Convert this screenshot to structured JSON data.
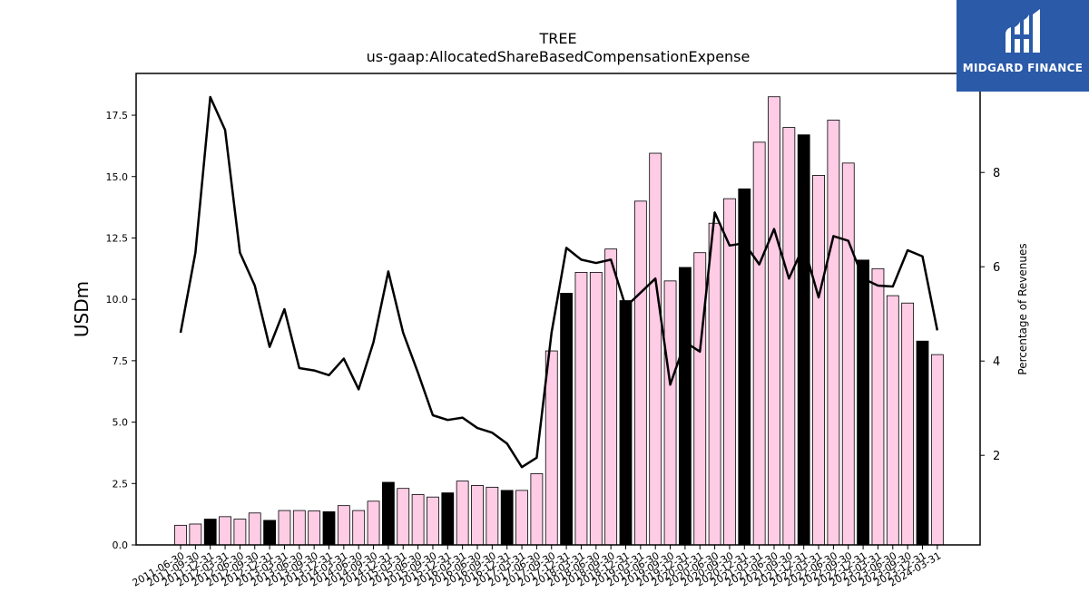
{
  "chart_data": {
    "type": "bar",
    "title": "TREE",
    "subtitle": "us-gaap:AllocatedShareBasedCompensationExpense",
    "ylabel": "USDm",
    "y2label": "Percentage of Revenues",
    "ylim": [
      0,
      19.2
    ],
    "y2lim": [
      0.1,
      10.1
    ],
    "yticks": [
      "0.0",
      "2.5",
      "5.0",
      "7.5",
      "10.0",
      "12.5",
      "15.0",
      "17.5"
    ],
    "y2ticks": [
      "2",
      "4",
      "6",
      "8"
    ],
    "categories": [
      "2011-06-30",
      "2011-09-30",
      "2011-12-31",
      "2012-03-31",
      "2012-06-30",
      "2012-09-30",
      "2012-12-31",
      "2013-03-31",
      "2013-06-30",
      "2013-09-30",
      "2013-12-31",
      "2014-03-31",
      "2014-06-30",
      "2014-09-30",
      "2014-12-31",
      "2015-03-31",
      "2015-06-30",
      "2015-09-30",
      "2015-12-31",
      "2016-03-31",
      "2016-06-30",
      "2016-09-30",
      "2016-12-31",
      "2017-03-31",
      "2017-06-30",
      "2017-09-30",
      "2017-12-31",
      "2018-03-31",
      "2018-06-30",
      "2018-09-30",
      "2018-12-31",
      "2019-03-31",
      "2019-06-30",
      "2019-09-30",
      "2019-12-31",
      "2020-03-31",
      "2020-06-30",
      "2020-09-30",
      "2020-12-31",
      "2021-03-31",
      "2021-06-30",
      "2021-09-30",
      "2021-12-31",
      "2022-03-31",
      "2022-06-30",
      "2022-09-30",
      "2022-12-31",
      "2023-03-31",
      "2023-06-30",
      "2023-09-30",
      "2023-12-31",
      "2024-03-31"
    ],
    "series": [
      {
        "type": "bar",
        "values": [
          0.8,
          0.85,
          1.05,
          1.15,
          1.05,
          1.3,
          1.0,
          1.4,
          1.4,
          1.38,
          1.35,
          1.6,
          1.4,
          1.78,
          2.55,
          2.3,
          2.05,
          1.95,
          2.12,
          2.6,
          2.42,
          2.35,
          2.22,
          2.22,
          2.9,
          7.9,
          10.25,
          11.1,
          11.1,
          12.05,
          9.95,
          14.0,
          15.95,
          10.75,
          11.3,
          11.9,
          13.1,
          14.1,
          14.5,
          16.4,
          18.25,
          17.0,
          16.7,
          15.05,
          17.3,
          15.55,
          11.6,
          11.25,
          10.15,
          9.85,
          8.3,
          7.75
        ],
        "year_end": [
          false,
          false,
          true,
          false,
          false,
          false,
          true,
          false,
          false,
          false,
          true,
          false,
          false,
          false,
          true,
          false,
          false,
          false,
          true,
          false,
          false,
          false,
          true,
          false,
          false,
          false,
          true,
          false,
          false,
          false,
          true,
          false,
          false,
          false,
          true,
          false,
          false,
          false,
          true,
          false,
          false,
          false,
          true,
          false,
          false,
          false,
          true,
          false,
          false,
          false,
          true,
          false
        ]
      },
      {
        "type": "line",
        "axis": "right",
        "values": [
          4.6,
          6.3,
          9.6,
          8.9,
          6.3,
          5.6,
          4.3,
          5.1,
          3.85,
          3.8,
          3.7,
          4.05,
          3.4,
          4.4,
          5.9,
          4.6,
          3.75,
          2.85,
          2.75,
          2.8,
          2.58,
          2.48,
          2.25,
          1.75,
          1.95,
          4.6,
          6.4,
          6.15,
          6.08,
          6.15,
          5.15,
          5.45,
          5.75,
          3.5,
          4.4,
          4.2,
          7.15,
          6.45,
          6.5,
          6.05,
          6.8,
          5.75,
          6.45,
          5.35,
          6.65,
          6.55,
          5.75,
          5.6,
          5.58,
          6.35,
          6.22,
          4.65
        ]
      }
    ],
    "colors": {
      "bar": "#ffcce6",
      "bar_year_end": "#000000",
      "line": "#000000"
    },
    "grid": false,
    "legend": false
  },
  "brand": {
    "name": "MIDGARD FINANCE",
    "color": "#2a5aa8",
    "icon": "midgard-logo-icon"
  }
}
